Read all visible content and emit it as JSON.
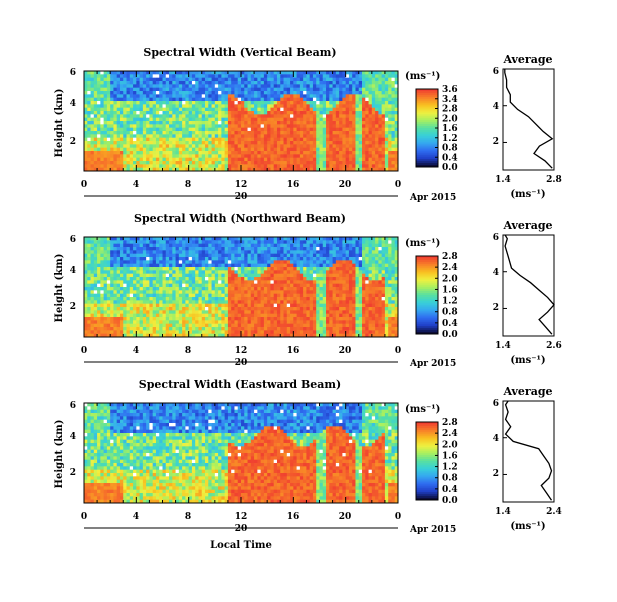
{
  "x_axis": {
    "ticks": [
      "0",
      "4",
      "8",
      "12",
      "16",
      "20",
      "0"
    ],
    "day_label": "20",
    "month_label": "Apr 2015",
    "xlabel": "Local Time"
  },
  "y_axis": {
    "ylabel": "Height (km)",
    "ticks": [
      "6",
      "4",
      "2"
    ]
  },
  "colorbar_unit": "(ms⁻¹)",
  "colorbar_ticks": [
    "3.6",
    "3.4",
    "2.8",
    "2.0",
    "1.6",
    "1.2",
    "0.8",
    "0.4",
    "0.0"
  ],
  "profile_title": "Average",
  "profile_unit": "(ms⁻¹)",
  "colors": {
    "colormap": [
      "#0b0b35",
      "#2040c8",
      "#2f6cf0",
      "#35a8f0",
      "#38d0d8",
      "#58e0a0",
      "#a8f060",
      "#f0f040",
      "#f8c020",
      "#f88028",
      "#f04030"
    ],
    "red": "#f04030",
    "blue": "#2f6cf0"
  },
  "chart_data": [
    {
      "type": "heatmap",
      "title": "Spectral Width (Vertical Beam)",
      "xlabel": "",
      "ylabel": "Height (km)",
      "xlim": [
        0,
        24
      ],
      "ylim": [
        0.5,
        6
      ],
      "colorbar_ticks": [
        "3.6",
        "3.4",
        "2.8",
        "2.0",
        "1.6",
        "1.2",
        "0.8",
        "0.4",
        "0.0"
      ],
      "profile": {
        "title": "Average",
        "xlim": [
          1.4,
          2.8
        ],
        "xticks": [
          "1.4",
          "2.8"
        ],
        "yticks": [
          "6",
          "4",
          "2"
        ],
        "xlabel": "(ms⁻¹)",
        "height": [
          0.6,
          1.0,
          1.4,
          1.8,
          2.2,
          2.6,
          3.0,
          3.4,
          3.8,
          4.2,
          4.6,
          5.0,
          5.4,
          5.8,
          6.0
        ],
        "value": [
          2.75,
          2.55,
          2.25,
          2.4,
          2.75,
          2.5,
          2.3,
          2.1,
          1.8,
          1.6,
          1.6,
          1.5,
          1.5,
          1.45,
          1.45
        ]
      }
    },
    {
      "type": "heatmap",
      "title": "Spectral Width (Northward Beam)",
      "xlabel": "",
      "ylabel": "Height (km)",
      "xlim": [
        0,
        24
      ],
      "ylim": [
        0.5,
        6
      ],
      "colorbar_ticks": [
        "2.8",
        "2.4",
        "2.0",
        "1.6",
        "1.2",
        "0.8",
        "0.4",
        "0.0"
      ],
      "profile": {
        "title": "Average",
        "xlim": [
          1.4,
          2.6
        ],
        "xticks": [
          "1.4",
          "2.6"
        ],
        "yticks": [
          "6",
          "4",
          "2"
        ],
        "xlabel": "(ms⁻¹)",
        "height": [
          0.6,
          1.0,
          1.4,
          1.8,
          2.2,
          2.6,
          3.0,
          3.4,
          3.8,
          4.2,
          4.6,
          5.0,
          5.4,
          5.8,
          6.0
        ],
        "value": [
          2.55,
          2.4,
          2.25,
          2.45,
          2.6,
          2.45,
          2.25,
          2.05,
          1.8,
          1.6,
          1.55,
          1.5,
          1.45,
          1.5,
          1.45
        ]
      }
    },
    {
      "type": "heatmap",
      "title": "Spectral Width (Eastward Beam)",
      "xlabel": "Local Time",
      "ylabel": "Height (km)",
      "xlim": [
        0,
        24
      ],
      "ylim": [
        0.5,
        6
      ],
      "colorbar_ticks": [
        "2.8",
        "2.4",
        "2.0",
        "1.6",
        "1.2",
        "0.8",
        "0.4",
        "0.0"
      ],
      "profile": {
        "title": "Average",
        "xlim": [
          1.4,
          2.4
        ],
        "xticks": [
          "1.4",
          "2.4"
        ],
        "yticks": [
          "6",
          "4",
          "2"
        ],
        "xlabel": "(ms⁻¹)",
        "height": [
          0.6,
          1.0,
          1.4,
          1.8,
          2.2,
          2.6,
          3.0,
          3.4,
          3.8,
          4.2,
          4.6,
          5.0,
          5.4,
          5.8,
          6.0
        ],
        "value": [
          2.35,
          2.25,
          2.15,
          2.3,
          2.35,
          2.3,
          2.2,
          2.1,
          1.6,
          1.45,
          1.55,
          1.45,
          1.5,
          1.45,
          1.5
        ]
      }
    }
  ]
}
